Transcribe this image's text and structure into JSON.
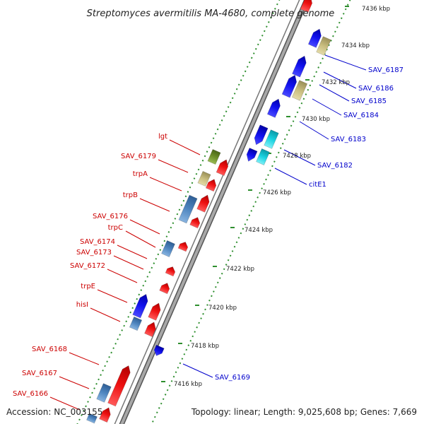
{
  "title": "Streptomyces avermitilis MA-4680, complete genome",
  "accession": "Accession: NC_003155",
  "topology": "Topology: linear; Length: 9,025,608 bp; Genes: 7,669",
  "colors": {
    "backbone": "#888888",
    "red_gene": "#ee1111",
    "blue_gene": "#1111ee",
    "steel_gene": "#4f86c0",
    "tan_gene": "#c8bd7e",
    "olive_gene": "#6d8f2a",
    "cyan_gene": "#19d2e0",
    "dotted_track": "#2f8f2f",
    "red_label": "#cc0000",
    "blue_label": "#0000cc"
  },
  "scale_ticks": [
    "7436 kbp",
    "7434 kbp",
    "7432 kbp",
    "7430 kbp",
    "7428 kbp",
    "7426 kbp",
    "7424 kbp",
    "7422 kbp",
    "7420 kbp",
    "7418 kbp",
    "7416 kbp"
  ],
  "left_labels": [
    "lgt",
    "SAV_6179",
    "trpA",
    "trpB",
    "SAV_6176",
    "trpC",
    "SAV_6174",
    "SAV_6173",
    "SAV_6172",
    "trpE",
    "hisI",
    "SAV_6168",
    "SAV_6167",
    "SAV_6166"
  ],
  "right_labels": [
    "SAV_6187",
    "SAV_6186",
    "SAV_6185",
    "SAV_6184",
    "SAV_6183",
    "SAV_6182",
    "citE1",
    "SAV_6169"
  ]
}
